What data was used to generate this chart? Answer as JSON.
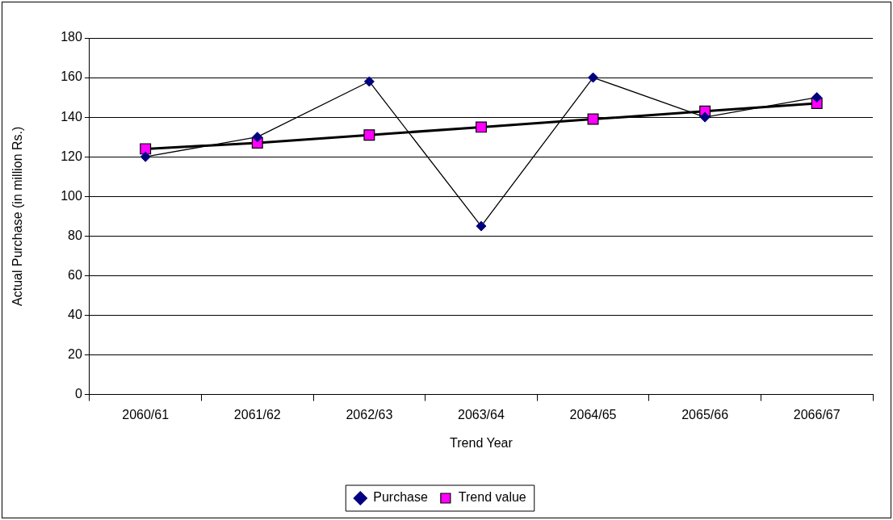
{
  "chart_data": {
    "type": "line",
    "xlabel": "Trend Year",
    "ylabel": "Actual Purchase (in million Rs.)",
    "categories": [
      "2060/61",
      "2061/62",
      "2062/63",
      "2063/64",
      "2064/65",
      "2065/66",
      "2066/67"
    ],
    "series": [
      {
        "name": "Purchase",
        "color": "#000080",
        "marker": "diamond",
        "values": [
          120,
          130,
          158,
          85,
          160,
          140,
          150
        ]
      },
      {
        "name": "Trend value",
        "color": "#ff00ff",
        "marker": "square",
        "values": [
          124,
          127,
          131,
          135,
          139,
          143,
          147
        ]
      }
    ],
    "ylim": [
      0,
      180
    ],
    "yticks": [
      0,
      20,
      40,
      60,
      80,
      100,
      120,
      140,
      160,
      180
    ],
    "grid": "y",
    "legend": "bottom",
    "line_style": "solid"
  }
}
